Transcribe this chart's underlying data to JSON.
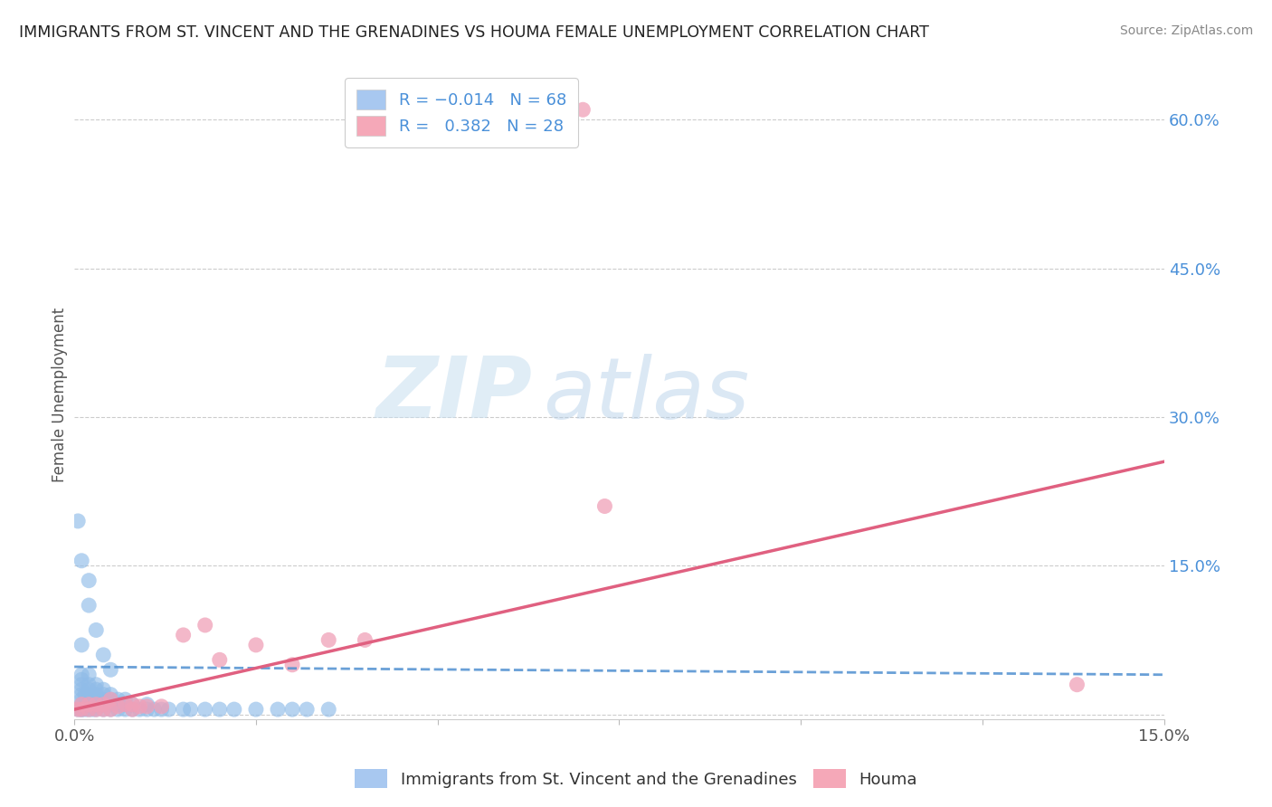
{
  "title": "IMMIGRANTS FROM ST. VINCENT AND THE GRENADINES VS HOUMA FEMALE UNEMPLOYMENT CORRELATION CHART",
  "source": "Source: ZipAtlas.com",
  "ylabel": "Female Unemployment",
  "xlim": [
    0.0,
    0.15
  ],
  "ylim": [
    -0.005,
    0.65
  ],
  "yticks": [
    0.0,
    0.15,
    0.3,
    0.45,
    0.6
  ],
  "ytick_labels": [
    "",
    "15.0%",
    "30.0%",
    "45.0%",
    "60.0%"
  ],
  "xticks": [
    0.0,
    0.025,
    0.05,
    0.075,
    0.1,
    0.125,
    0.15
  ],
  "xtick_labels": [
    "0.0%",
    "",
    "",
    "",
    "",
    "",
    "15.0%"
  ],
  "series1_color": "#90bce8",
  "series2_color": "#f0a0b8",
  "trend1_color": "#5090d0",
  "trend2_color": "#e06080",
  "background_color": "#ffffff",
  "watermark_zip": "ZIP",
  "watermark_atlas": "atlas",
  "R1": -0.014,
  "N1": 68,
  "R2": 0.382,
  "N2": 28,
  "blue_x": [
    0.0005,
    0.001,
    0.001,
    0.001,
    0.001,
    0.001,
    0.001,
    0.001,
    0.001,
    0.001,
    0.0015,
    0.0015,
    0.0015,
    0.002,
    0.002,
    0.002,
    0.002,
    0.002,
    0.002,
    0.002,
    0.0025,
    0.0025,
    0.003,
    0.003,
    0.003,
    0.003,
    0.003,
    0.003,
    0.004,
    0.004,
    0.004,
    0.004,
    0.004,
    0.005,
    0.005,
    0.005,
    0.005,
    0.006,
    0.006,
    0.006,
    0.007,
    0.007,
    0.007,
    0.008,
    0.008,
    0.009,
    0.01,
    0.01,
    0.011,
    0.012,
    0.013,
    0.015,
    0.016,
    0.018,
    0.02,
    0.022,
    0.025,
    0.028,
    0.03,
    0.032,
    0.035,
    0.0005,
    0.001,
    0.002,
    0.002,
    0.003,
    0.004,
    0.005,
    0.001
  ],
  "blue_y": [
    0.005,
    0.005,
    0.01,
    0.015,
    0.02,
    0.025,
    0.03,
    0.035,
    0.005,
    0.04,
    0.005,
    0.01,
    0.02,
    0.005,
    0.01,
    0.015,
    0.02,
    0.025,
    0.03,
    0.04,
    0.005,
    0.015,
    0.005,
    0.01,
    0.015,
    0.02,
    0.025,
    0.03,
    0.005,
    0.01,
    0.015,
    0.02,
    0.025,
    0.005,
    0.01,
    0.015,
    0.02,
    0.005,
    0.01,
    0.015,
    0.005,
    0.01,
    0.015,
    0.005,
    0.01,
    0.005,
    0.005,
    0.01,
    0.005,
    0.005,
    0.005,
    0.005,
    0.005,
    0.005,
    0.005,
    0.005,
    0.005,
    0.005,
    0.005,
    0.005,
    0.005,
    0.195,
    0.155,
    0.135,
    0.11,
    0.085,
    0.06,
    0.045,
    0.07
  ],
  "pink_x": [
    0.0005,
    0.001,
    0.001,
    0.002,
    0.002,
    0.003,
    0.003,
    0.004,
    0.004,
    0.005,
    0.005,
    0.006,
    0.007,
    0.008,
    0.008,
    0.009,
    0.01,
    0.012,
    0.015,
    0.018,
    0.02,
    0.025,
    0.03,
    0.035,
    0.04,
    0.07,
    0.073,
    0.138
  ],
  "pink_y": [
    0.005,
    0.005,
    0.01,
    0.005,
    0.01,
    0.005,
    0.01,
    0.005,
    0.01,
    0.005,
    0.015,
    0.008,
    0.01,
    0.005,
    0.01,
    0.008,
    0.008,
    0.008,
    0.08,
    0.09,
    0.055,
    0.07,
    0.05,
    0.075,
    0.075,
    0.61,
    0.21,
    0.03
  ],
  "trend1_x0": 0.0,
  "trend1_x1": 0.15,
  "trend1_y0": 0.048,
  "trend1_y1": 0.04,
  "trend2_x0": 0.0,
  "trend2_x1": 0.15,
  "trend2_y0": 0.005,
  "trend2_y1": 0.255
}
